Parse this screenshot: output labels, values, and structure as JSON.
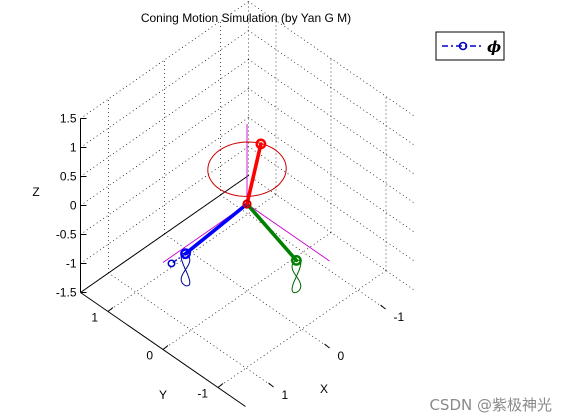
{
  "title": "Coning Motion Simulation (by Yan G M)",
  "watermark": "CSDN @紫极神光",
  "legend": {
    "label": "ϕ",
    "color": "#0000cc",
    "line_style": "dash-dot",
    "marker": "circle"
  },
  "colors": {
    "x_axis_body": "#008000",
    "y_axis_body": "#0000ff",
    "z_axis_body": "#ff0000",
    "reference_axes": "#cc00cc",
    "grid": "#000000"
  },
  "chart_data": {
    "type": "line3d",
    "title": "Coning Motion Simulation (by Yan G M)",
    "xlabel": "X",
    "ylabel": "Y",
    "zlabel": "Z",
    "xlim": [
      -1.5,
      1.5
    ],
    "ylim": [
      -1.5,
      1.5
    ],
    "zlim": [
      -1.5,
      1.5
    ],
    "x_ticks": [
      "-1",
      "0",
      "1"
    ],
    "y_ticks": [
      "-1",
      "0",
      "1"
    ],
    "z_ticks": [
      "-1.5",
      "-1",
      "-0.5",
      "0",
      "0.5",
      "1",
      "1.5"
    ],
    "grid": true,
    "legend_position": "top-right",
    "body_axes": [
      {
        "name": "x",
        "color": "#008000",
        "end": [
          0.1,
          -1.0,
          -0.25
        ]
      },
      {
        "name": "y",
        "color": "#0000ff",
        "end": [
          1.0,
          0.1,
          -0.25
        ]
      },
      {
        "name": "z",
        "color": "#ff0000",
        "end": [
          -0.15,
          -0.1,
          1.0
        ]
      }
    ],
    "phi_marker": [
      1.25,
      0.1,
      -0.25
    ],
    "z_circle": {
      "center": [
        0,
        0,
        0.6
      ],
      "radius": 0.5
    },
    "reference_axes": {
      "color": "#cc00cc",
      "extent": 1.5
    }
  }
}
